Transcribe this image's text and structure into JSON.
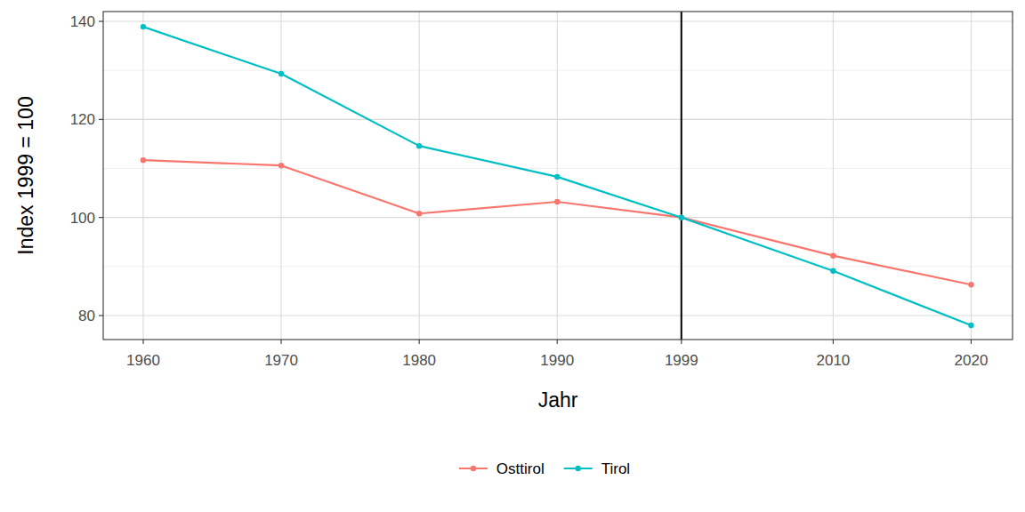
{
  "chart_data": {
    "type": "line",
    "x_label": "Jahr",
    "y_label": "Index 1999 = 100",
    "x": [
      1960,
      1970,
      1980,
      1990,
      1999,
      2010,
      2020
    ],
    "series": [
      {
        "name": "Osttirol",
        "color": "#F8766D",
        "marker": "circle",
        "values": [
          111.7,
          110.6,
          100.8,
          103.2,
          100,
          92.2,
          86.3
        ]
      },
      {
        "name": "Tirol",
        "color": "#00BFC4",
        "marker": "circle",
        "values": [
          138.9,
          129.3,
          114.6,
          108.3,
          100,
          89.1,
          78.0
        ]
      }
    ],
    "xlim": [
      1957.1,
      2023
    ],
    "xticks": [
      1960,
      1970,
      1980,
      1990,
      1999,
      2010,
      2020
    ],
    "ylim": [
      75.1,
      142
    ],
    "yticks": [
      80,
      100,
      120,
      140
    ],
    "vline": 1999,
    "grid": true,
    "legend": "bottom"
  }
}
